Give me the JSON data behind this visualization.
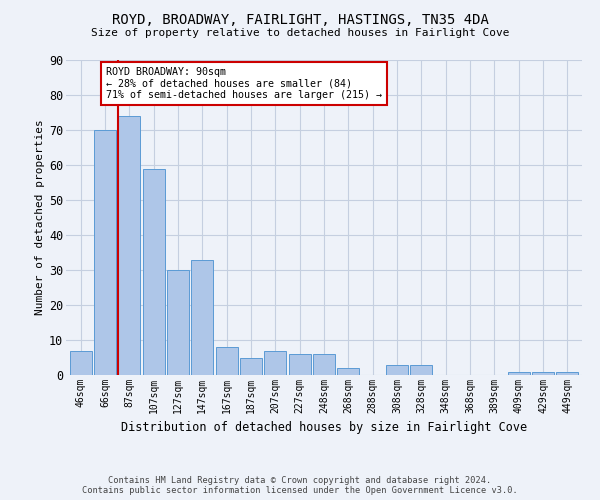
{
  "title": "ROYD, BROADWAY, FAIRLIGHT, HASTINGS, TN35 4DA",
  "subtitle": "Size of property relative to detached houses in Fairlight Cove",
  "xlabel": "Distribution of detached houses by size in Fairlight Cove",
  "ylabel": "Number of detached properties",
  "categories": [
    "46sqm",
    "66sqm",
    "87sqm",
    "107sqm",
    "127sqm",
    "147sqm",
    "167sqm",
    "187sqm",
    "207sqm",
    "227sqm",
    "248sqm",
    "268sqm",
    "288sqm",
    "308sqm",
    "328sqm",
    "348sqm",
    "368sqm",
    "389sqm",
    "409sqm",
    "429sqm",
    "449sqm"
  ],
  "values": [
    7,
    70,
    74,
    59,
    30,
    33,
    8,
    5,
    7,
    6,
    6,
    2,
    0,
    3,
    3,
    0,
    0,
    0,
    1,
    1,
    1
  ],
  "bar_color": "#aec6e8",
  "bar_edge_color": "#5b9bd5",
  "annotation_label": "ROYD BROADWAY: 90sqm",
  "annotation_line1": "← 28% of detached houses are smaller (84)",
  "annotation_line2": "71% of semi-detached houses are larger (215) →",
  "vline_color": "#cc0000",
  "vline_x_index": 2,
  "footer_line1": "Contains HM Land Registry data © Crown copyright and database right 2024.",
  "footer_line2": "Contains public sector information licensed under the Open Government Licence v3.0.",
  "ylim": [
    0,
    90
  ],
  "yticks": [
    0,
    10,
    20,
    30,
    40,
    50,
    60,
    70,
    80,
    90
  ],
  "background_color": "#eef2f9",
  "grid_color": "#c5cfe0"
}
